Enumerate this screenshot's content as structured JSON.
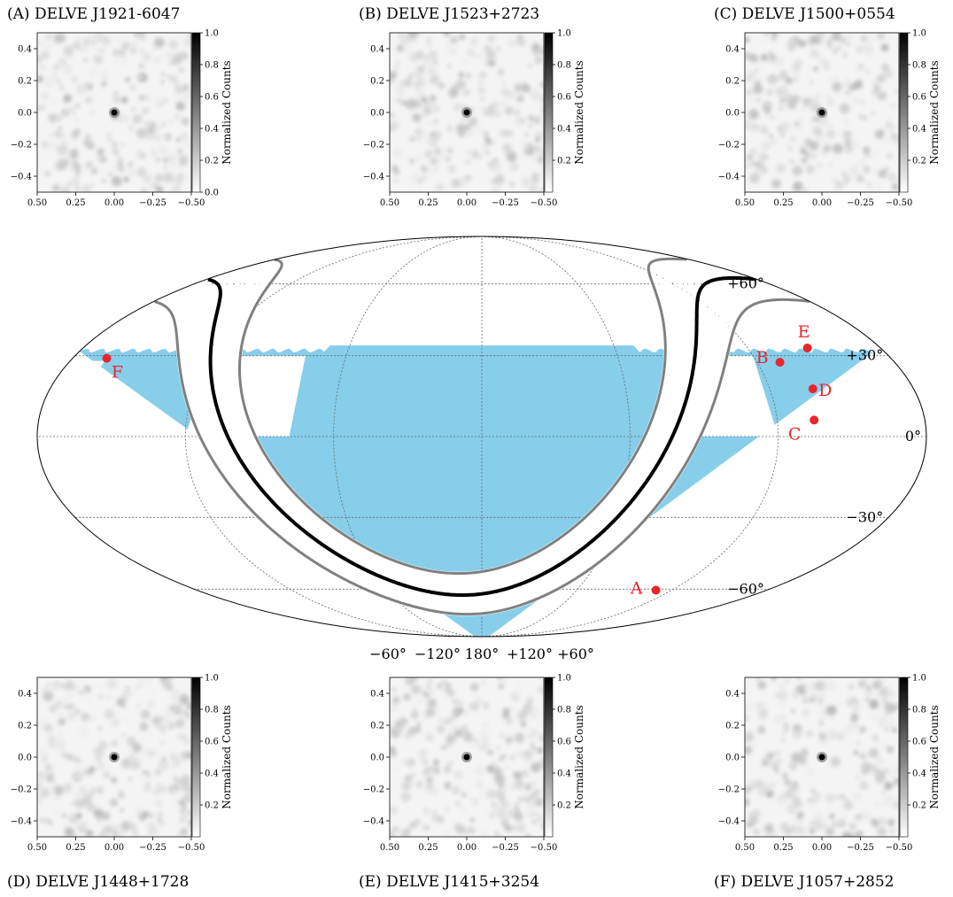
{
  "chart_data": [
    {
      "type": "heatmap",
      "panel": "A",
      "title": "(A) DELVE J1921-6047",
      "xlim": [
        0.5,
        -0.5
      ],
      "ylim": [
        -0.5,
        0.5
      ],
      "xticks": [
        "0.50",
        "0.25",
        "0.00",
        "−0.25",
        "−0.50"
      ],
      "yticks": [
        "0.4",
        "0.2",
        "0.0",
        "−0.2",
        "−0.4"
      ],
      "colorbar": {
        "label": "Normalized Counts",
        "range": [
          0,
          1
        ],
        "ticks": [
          "1.0",
          "0.8",
          "0.6",
          "0.4",
          "0.2",
          "0.0"
        ]
      },
      "peak": [
        0.0,
        0.0
      ]
    },
    {
      "type": "heatmap",
      "panel": "B",
      "title": "(B) DELVE J1523+2723",
      "xlim": [
        0.5,
        -0.5
      ],
      "ylim": [
        -0.5,
        0.5
      ],
      "xticks": [
        "0.50",
        "0.25",
        "0.00",
        "−0.25",
        "−0.50"
      ],
      "yticks": [
        "0.4",
        "0.2",
        "0.0",
        "−0.2",
        "−0.4"
      ],
      "colorbar": {
        "label": "Normalized Counts",
        "range": [
          0,
          1
        ],
        "ticks": [
          "1.0",
          "0.8",
          "0.6",
          "0.4",
          "0.2"
        ]
      },
      "peak": [
        0.0,
        0.0
      ]
    },
    {
      "type": "heatmap",
      "panel": "C",
      "title": "(C) DELVE J1500+0554",
      "xlim": [
        0.5,
        -0.5
      ],
      "ylim": [
        -0.5,
        0.5
      ],
      "xticks": [
        "0.50",
        "0.25",
        "0.00",
        "−0.25",
        "−0.50"
      ],
      "yticks": [
        "0.4",
        "0.2",
        "0.0",
        "−0.2",
        "−0.4"
      ],
      "colorbar": {
        "label": "Normalized Counts",
        "range": [
          0,
          1
        ],
        "ticks": [
          "1.0",
          "0.8",
          "0.6",
          "0.4",
          "0.2"
        ]
      },
      "peak": [
        0.0,
        0.0
      ]
    },
    {
      "type": "heatmap",
      "panel": "D",
      "title": "(D) DELVE J1448+1728",
      "xlim": [
        0.5,
        -0.5
      ],
      "ylim": [
        -0.5,
        0.5
      ],
      "xticks": [
        "0.50",
        "0.25",
        "0.00",
        "−0.25",
        "−0.50"
      ],
      "yticks": [
        "0.4",
        "0.2",
        "0.0",
        "−0.2",
        "−0.4"
      ],
      "colorbar": {
        "label": "Normalized Counts",
        "range": [
          0,
          1
        ],
        "ticks": [
          "1.0",
          "0.8",
          "0.6",
          "0.4",
          "0.2"
        ]
      },
      "peak": [
        0.0,
        0.0
      ]
    },
    {
      "type": "heatmap",
      "panel": "E",
      "title": "(E) DELVE J1415+3254",
      "xlim": [
        0.5,
        -0.5
      ],
      "ylim": [
        -0.5,
        0.5
      ],
      "xticks": [
        "0.50",
        "0.25",
        "0.00",
        "−0.25",
        "−0.50"
      ],
      "yticks": [
        "0.4",
        "0.2",
        "0.0",
        "−0.2",
        "−0.4"
      ],
      "colorbar": {
        "label": "Normalized Counts",
        "range": [
          0,
          1
        ],
        "ticks": [
          "1.0",
          "0.8",
          "0.6",
          "0.4",
          "0.2"
        ]
      },
      "peak": [
        0.0,
        0.0
      ]
    },
    {
      "type": "heatmap",
      "panel": "F",
      "title": "(F) DELVE J1057+2852",
      "xlim": [
        0.5,
        -0.5
      ],
      "ylim": [
        -0.5,
        0.5
      ],
      "xticks": [
        "0.50",
        "0.25",
        "0.00",
        "−0.25",
        "−0.50"
      ],
      "yticks": [
        "0.4",
        "0.2",
        "0.0",
        "−0.2",
        "−0.4"
      ],
      "colorbar": {
        "label": "Normalized Counts",
        "range": [
          0,
          1
        ],
        "ticks": [
          "1.0",
          "0.8",
          "0.6",
          "0.4",
          "0.2"
        ]
      },
      "peak": [
        0.0,
        0.0
      ]
    },
    {
      "type": "scatter",
      "projection": "mollweide",
      "lon_ticks": [
        "−60°",
        "−120°",
        "180°",
        "+120°",
        "+60°"
      ],
      "lat_ticks": [
        "+60°",
        "+30°",
        "0°",
        "−30°",
        "−60°"
      ],
      "footprint_color": "#87CEEB",
      "plane_color": "#000000",
      "plane_bounds_color": "#808080",
      "point_color": "#e8262b",
      "points": [
        {
          "label": "A",
          "lon": 70,
          "lat": -60.5
        },
        {
          "label": "B",
          "lon": 50,
          "lat": 27.5
        },
        {
          "label": "C",
          "lon": 45,
          "lat": 6
        },
        {
          "label": "D",
          "lon": 42,
          "lat": 17.5
        },
        {
          "label": "E",
          "lon": 33,
          "lat": 33
        },
        {
          "label": "F",
          "lon": -15,
          "lat": 29
        }
      ]
    }
  ]
}
